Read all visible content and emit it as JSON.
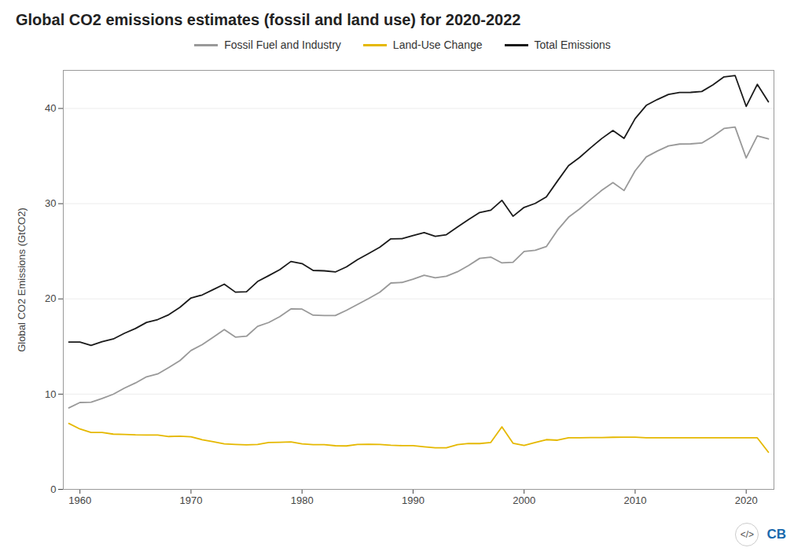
{
  "chart_data": {
    "type": "line",
    "title": "Global CO2 emissions estimates (fossil and land use) for 2020-2022",
    "ylabel": "Global CO2 Emissions (GtCO2)",
    "x": [
      1959,
      1960,
      1961,
      1962,
      1963,
      1964,
      1965,
      1966,
      1967,
      1968,
      1969,
      1970,
      1971,
      1972,
      1973,
      1974,
      1975,
      1976,
      1977,
      1978,
      1979,
      1980,
      1981,
      1982,
      1983,
      1984,
      1985,
      1986,
      1987,
      1988,
      1989,
      1990,
      1991,
      1992,
      1993,
      1994,
      1995,
      1996,
      1997,
      1998,
      1999,
      2000,
      2001,
      2002,
      2003,
      2004,
      2005,
      2006,
      2007,
      2008,
      2009,
      2010,
      2011,
      2012,
      2013,
      2014,
      2015,
      2016,
      2017,
      2018,
      2019,
      2020,
      2021,
      2022
    ],
    "series": [
      {
        "name": "Fossil Fuel and Industry",
        "color": "#999999",
        "values": [
          8.55,
          9.12,
          9.15,
          9.54,
          9.99,
          10.63,
          11.17,
          11.82,
          12.12,
          12.79,
          13.52,
          14.58,
          15.19,
          15.98,
          16.78,
          15.99,
          16.08,
          17.12,
          17.52,
          18.14,
          18.95,
          18.93,
          18.29,
          18.25,
          18.25,
          18.8,
          19.42,
          20.04,
          20.7,
          21.67,
          21.73,
          22.07,
          22.49,
          22.21,
          22.38,
          22.85,
          23.51,
          24.26,
          24.39,
          23.78,
          23.84,
          24.99,
          25.11,
          25.49,
          27.21,
          28.58,
          29.45,
          30.45,
          31.41,
          32.21,
          31.38,
          33.45,
          34.91,
          35.53,
          36.06,
          36.26,
          36.28,
          36.37,
          37.07,
          37.9,
          38.05,
          34.81,
          37.12,
          36.8
        ]
      },
      {
        "name": "Land-Use Change",
        "color": "#E5B800",
        "values": [
          6.92,
          6.34,
          5.97,
          5.97,
          5.8,
          5.76,
          5.72,
          5.71,
          5.71,
          5.55,
          5.59,
          5.52,
          5.22,
          5.0,
          4.77,
          4.72,
          4.67,
          4.71,
          4.92,
          4.94,
          4.98,
          4.78,
          4.7,
          4.7,
          4.58,
          4.56,
          4.71,
          4.73,
          4.72,
          4.64,
          4.59,
          4.59,
          4.47,
          4.36,
          4.36,
          4.7,
          4.82,
          4.81,
          4.93,
          6.57,
          4.84,
          4.62,
          4.92,
          5.22,
          5.16,
          5.41,
          5.41,
          5.43,
          5.44,
          5.47,
          5.48,
          5.48,
          5.41,
          5.41,
          5.41,
          5.41,
          5.41,
          5.41,
          5.41,
          5.41,
          5.41,
          5.41,
          5.41,
          3.9
        ]
      },
      {
        "name": "Total Emissions",
        "color": "#1a1a1a",
        "values": [
          15.47,
          15.46,
          15.12,
          15.51,
          15.79,
          16.39,
          16.89,
          17.53,
          17.83,
          18.34,
          19.11,
          20.1,
          20.41,
          20.98,
          21.55,
          20.71,
          20.75,
          21.83,
          22.44,
          23.08,
          23.93,
          23.71,
          22.99,
          22.95,
          22.83,
          23.36,
          24.13,
          24.77,
          25.42,
          26.31,
          26.32,
          26.66,
          26.96,
          26.57,
          26.74,
          27.55,
          28.33,
          29.07,
          29.32,
          30.35,
          28.68,
          29.61,
          30.03,
          30.71,
          32.37,
          33.99,
          34.86,
          35.88,
          36.85,
          37.68,
          36.86,
          38.93,
          40.32,
          40.94,
          41.47,
          41.67,
          41.69,
          41.78,
          42.48,
          43.31,
          43.46,
          40.22,
          42.53,
          40.7
        ]
      }
    ],
    "xlim": [
      1958.5,
      2022.5
    ],
    "ylim": [
      0,
      44
    ],
    "xticks": [
      1960,
      1970,
      1980,
      1990,
      2000,
      2010,
      2020
    ],
    "yticks": [
      0,
      10,
      20,
      30,
      40
    ],
    "grid": true,
    "legend": "top",
    "annotations": [
      "</>",
      "CB"
    ]
  }
}
